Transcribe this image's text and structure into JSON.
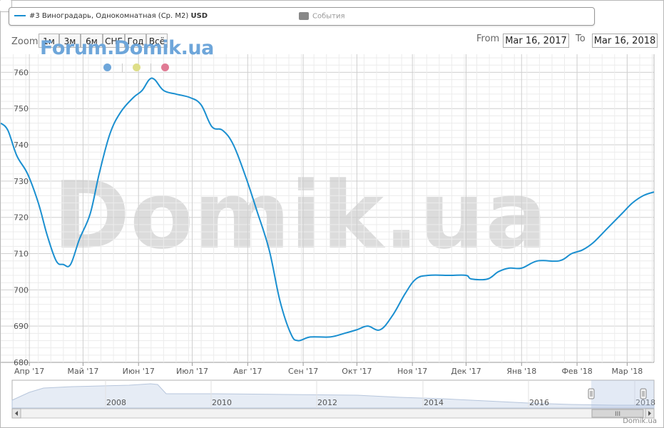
{
  "legend": {
    "series_label": "#3 Виноградарь, Однокомнатная (Ср. M2)",
    "series_unit": "USD",
    "events_label": "События"
  },
  "zoom": {
    "label": "Zoom",
    "buttons": [
      "1м",
      "3м",
      "6м",
      "СНГ",
      "Год",
      "Всё"
    ]
  },
  "range": {
    "from_label": "From",
    "from_value": "Mar 16, 2017",
    "to_label": "To",
    "to_value": "Mar 16, 2018"
  },
  "watermarks": {
    "forum": "Forum.Domik.ua",
    "center": "Domik.ua"
  },
  "credit": "Domik.ua",
  "colors": {
    "series": "#1a8fd0",
    "dot_blue": "#6ea6da",
    "dot_yellow": "#dede88",
    "dot_red": "#e07a94",
    "watermark": "#dcdcdc"
  },
  "chart_data": {
    "type": "line",
    "title": "",
    "xlabel": "",
    "ylabel": "",
    "ylim": [
      680,
      765
    ],
    "yticks": [
      680,
      690,
      700,
      710,
      720,
      730,
      740,
      750,
      760
    ],
    "x_range": [
      "2017-03-16",
      "2018-03-16"
    ],
    "x_ticks": [
      {
        "date": "2017-04-01",
        "label": "Апр '17"
      },
      {
        "date": "2017-05-01",
        "label": "Май '17"
      },
      {
        "date": "2017-06-01",
        "label": "Июн '17"
      },
      {
        "date": "2017-07-01",
        "label": "Июл '17"
      },
      {
        "date": "2017-08-01",
        "label": "Авг '17"
      },
      {
        "date": "2017-09-01",
        "label": "Сен '17"
      },
      {
        "date": "2017-10-01",
        "label": "Окт '17"
      },
      {
        "date": "2017-11-01",
        "label": "Ноя '17"
      },
      {
        "date": "2017-12-01",
        "label": "Дек '17"
      },
      {
        "date": "2018-01-01",
        "label": "Янв '18"
      },
      {
        "date": "2018-02-01",
        "label": "Фев '18"
      },
      {
        "date": "2018-03-01",
        "label": "Мар '18"
      }
    ],
    "grid": true,
    "series": [
      {
        "name": "#3 Виноградарь, Однокомнатная (Ср. M2)",
        "points": [
          {
            "x": "2017-03-16",
            "y": 746
          },
          {
            "x": "2017-03-20",
            "y": 744
          },
          {
            "x": "2017-03-25",
            "y": 737
          },
          {
            "x": "2017-03-31",
            "y": 732
          },
          {
            "x": "2017-04-06",
            "y": 724
          },
          {
            "x": "2017-04-11",
            "y": 715
          },
          {
            "x": "2017-04-16",
            "y": 708
          },
          {
            "x": "2017-04-20",
            "y": 707
          },
          {
            "x": "2017-04-24",
            "y": 707
          },
          {
            "x": "2017-04-29",
            "y": 714
          },
          {
            "x": "2017-05-05",
            "y": 721
          },
          {
            "x": "2017-05-10",
            "y": 732
          },
          {
            "x": "2017-05-16",
            "y": 743
          },
          {
            "x": "2017-05-22",
            "y": 749
          },
          {
            "x": "2017-05-29",
            "y": 753
          },
          {
            "x": "2017-06-03",
            "y": 755
          },
          {
            "x": "2017-06-07",
            "y": 758
          },
          {
            "x": "2017-06-10",
            "y": 758
          },
          {
            "x": "2017-06-15",
            "y": 755
          },
          {
            "x": "2017-06-22",
            "y": 754
          },
          {
            "x": "2017-06-30",
            "y": 753
          },
          {
            "x": "2017-07-06",
            "y": 751
          },
          {
            "x": "2017-07-12",
            "y": 745
          },
          {
            "x": "2017-07-18",
            "y": 744
          },
          {
            "x": "2017-07-24",
            "y": 740
          },
          {
            "x": "2017-07-31",
            "y": 731
          },
          {
            "x": "2017-08-06",
            "y": 722
          },
          {
            "x": "2017-08-13",
            "y": 711
          },
          {
            "x": "2017-08-19",
            "y": 697
          },
          {
            "x": "2017-08-25",
            "y": 688
          },
          {
            "x": "2017-08-29",
            "y": 686
          },
          {
            "x": "2017-09-05",
            "y": 687
          },
          {
            "x": "2017-09-16",
            "y": 687
          },
          {
            "x": "2017-09-24",
            "y": 688
          },
          {
            "x": "2017-10-01",
            "y": 689
          },
          {
            "x": "2017-10-07",
            "y": 690
          },
          {
            "x": "2017-10-14",
            "y": 689
          },
          {
            "x": "2017-10-21",
            "y": 693
          },
          {
            "x": "2017-10-28",
            "y": 699
          },
          {
            "x": "2017-11-03",
            "y": 703
          },
          {
            "x": "2017-11-10",
            "y": 704
          },
          {
            "x": "2017-11-22",
            "y": 704
          },
          {
            "x": "2017-12-01",
            "y": 704
          },
          {
            "x": "2017-12-04",
            "y": 703
          },
          {
            "x": "2017-12-13",
            "y": 703
          },
          {
            "x": "2017-12-19",
            "y": 705
          },
          {
            "x": "2017-12-25",
            "y": 706
          },
          {
            "x": "2018-01-01",
            "y": 706
          },
          {
            "x": "2018-01-10",
            "y": 708
          },
          {
            "x": "2018-01-22",
            "y": 708
          },
          {
            "x": "2018-01-29",
            "y": 710
          },
          {
            "x": "2018-02-04",
            "y": 711
          },
          {
            "x": "2018-02-10",
            "y": 713
          },
          {
            "x": "2018-02-18",
            "y": 717
          },
          {
            "x": "2018-02-26",
            "y": 721
          },
          {
            "x": "2018-03-04",
            "y": 724
          },
          {
            "x": "2018-03-10",
            "y": 726
          },
          {
            "x": "2018-03-16",
            "y": 727
          }
        ]
      }
    ]
  },
  "navigator": {
    "labels": [
      "2008",
      "2010",
      "2012",
      "2014",
      "2016",
      "2018"
    ],
    "scrollbar_grip": "III"
  }
}
